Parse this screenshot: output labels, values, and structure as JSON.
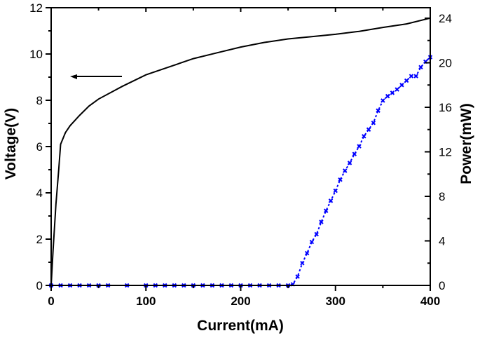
{
  "chart_data": {
    "type": "line",
    "title": "",
    "xlabel": "Current(mA)",
    "ylabel": "Voltage(V)",
    "y2label": "Power(mW)",
    "xlim": [
      0,
      400
    ],
    "ylim": [
      0,
      12
    ],
    "y2lim": [
      0,
      24
    ],
    "x_ticks": [
      0,
      100,
      200,
      300,
      400
    ],
    "x_tick_labels": [
      "0",
      "100",
      "200",
      "300",
      "400"
    ],
    "y_ticks": [
      0,
      2,
      4,
      6,
      8,
      10,
      12
    ],
    "y_tick_labels": [
      "0",
      "2",
      "4",
      "6",
      "8",
      "10",
      "12"
    ],
    "y2_ticks": [
      0,
      4,
      8,
      12,
      16,
      20,
      24
    ],
    "y2_tick_labels": [
      "0",
      "4",
      "8",
      "12",
      "16",
      "20",
      "24"
    ],
    "grid": false,
    "legend": null,
    "annotations": [
      {
        "type": "arrow",
        "text": "",
        "pointing": "left",
        "meaning": "voltage curve uses left axis",
        "from": [
          75,
          9.0
        ],
        "to": [
          20,
          9.0
        ]
      }
    ],
    "series": [
      {
        "name": "Voltage",
        "axis": "left",
        "color": "#000000",
        "style": "solid line",
        "x": [
          0,
          2,
          5,
          8,
          10,
          15,
          20,
          30,
          40,
          50,
          75,
          100,
          125,
          150,
          175,
          200,
          225,
          250,
          275,
          300,
          325,
          350,
          375,
          400
        ],
        "values": [
          0,
          1.5,
          3.5,
          5.0,
          6.1,
          6.6,
          6.9,
          7.35,
          7.75,
          8.05,
          8.6,
          9.1,
          9.45,
          9.8,
          10.05,
          10.3,
          10.5,
          10.65,
          10.75,
          10.85,
          10.98,
          11.15,
          11.3,
          11.55
        ]
      },
      {
        "name": "Power",
        "axis": "right",
        "color": "#0000ff",
        "style": "dotted line with markers",
        "x": [
          0,
          10,
          20,
          30,
          40,
          50,
          60,
          80,
          100,
          110,
          120,
          130,
          140,
          150,
          160,
          170,
          180,
          190,
          200,
          210,
          220,
          230,
          240,
          250,
          255,
          260,
          265,
          270,
          275,
          280,
          285,
          290,
          295,
          300,
          305,
          310,
          315,
          320,
          325,
          330,
          335,
          340,
          345,
          350,
          355,
          360,
          365,
          370,
          375,
          380,
          385,
          390,
          395,
          400
        ],
        "values": [
          0,
          0,
          0,
          0,
          0,
          0,
          0,
          0,
          0,
          0,
          0,
          0,
          0,
          0,
          0,
          0,
          0,
          0,
          0,
          0,
          0,
          0,
          0,
          0,
          0.1,
          0.8,
          2.0,
          2.9,
          3.9,
          4.6,
          5.7,
          6.7,
          7.6,
          8.5,
          9.5,
          10.3,
          11.0,
          11.8,
          12.5,
          13.4,
          14.0,
          14.6,
          15.7,
          16.6,
          17.0,
          17.3,
          17.6,
          18.0,
          18.4,
          18.8,
          18.8,
          19.6,
          20.1,
          20.5
        ]
      }
    ]
  }
}
